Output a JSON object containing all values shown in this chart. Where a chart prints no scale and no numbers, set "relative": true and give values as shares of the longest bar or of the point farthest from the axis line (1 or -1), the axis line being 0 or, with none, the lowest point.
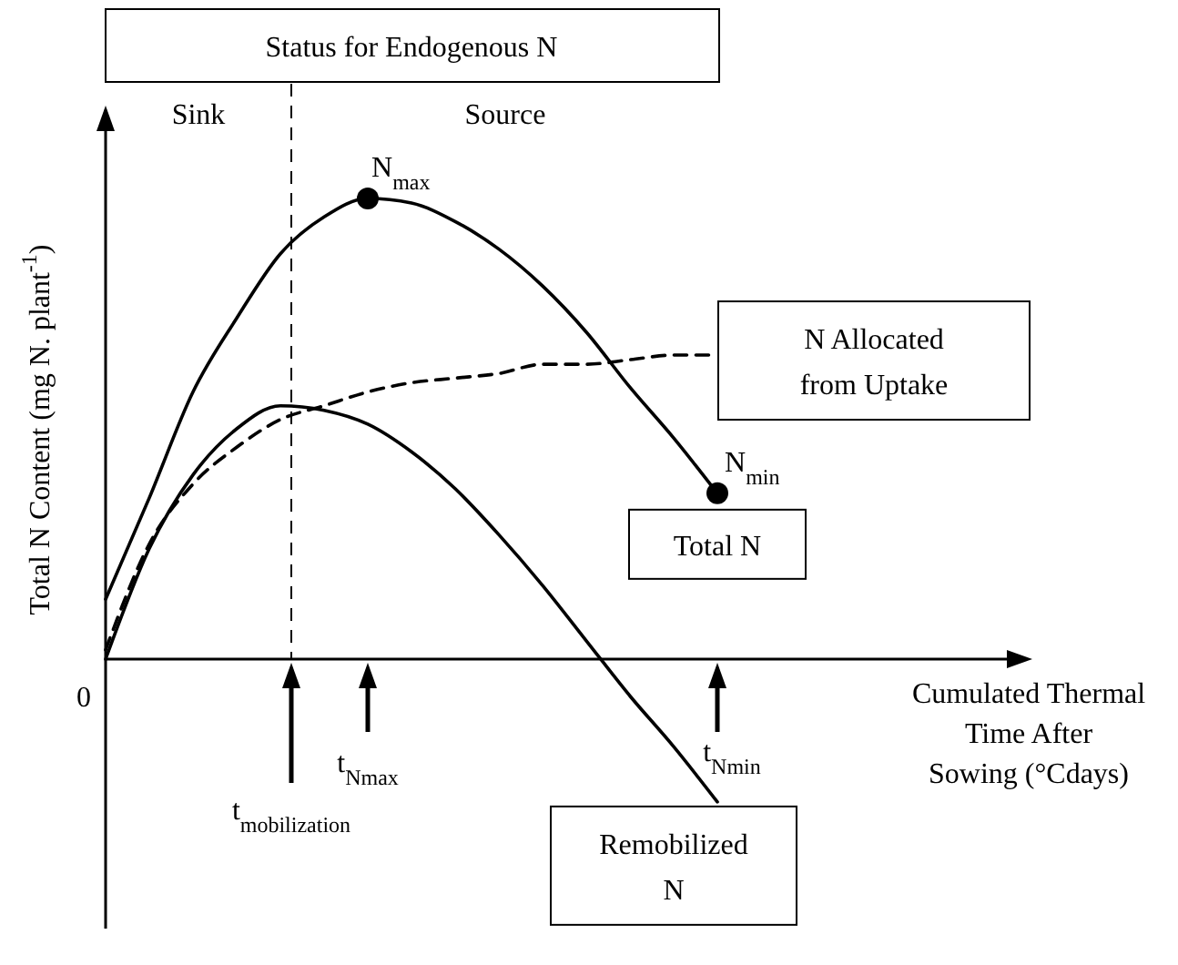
{
  "chart_data": {
    "type": "line",
    "relative": true,
    "title": "Status for Endogenous N",
    "xlabel": "Cumulated Thermal Time After Sowing (°Cdays)",
    "ylabel": "Total N Content (mg N. plant$^{-1}$)",
    "categories": [
      null,
      null,
      null,
      null,
      null,
      null,
      null,
      null,
      null,
      null,
      null,
      null,
      null,
      null,
      null,
      null,
      null,
      null,
      null,
      null,
      null,
      null
    ],
    "series": [
      {
        "name": "Total N",
        "color": "#000000",
        "line_style": "solid",
        "values": [
          0.13,
          0.35,
          0.58,
          0.74,
          0.88,
          0.96,
          1.0,
          0.99,
          0.95,
          0.89,
          0.81,
          0.71,
          0.59,
          0.48,
          0.36,
          null,
          null,
          null,
          null,
          null,
          null,
          null
        ]
      },
      {
        "name": "N Allocated from Uptake",
        "color": "#000000",
        "line_style": "dashed",
        "values": [
          0.02,
          0.25,
          0.38,
          0.46,
          0.52,
          0.55,
          0.58,
          0.6,
          0.61,
          0.62,
          0.64,
          0.64,
          0.65,
          0.66,
          0.66,
          null,
          null,
          null,
          null,
          null,
          null,
          null
        ]
      },
      {
        "name": "Remobilized N",
        "color": "#000000",
        "line_style": "solid",
        "values": [
          0,
          0.24,
          0.4,
          0.5,
          0.55,
          0.54,
          0.51,
          0.45,
          0.37,
          0.27,
          0.16,
          0.04,
          -0.08,
          -0.19,
          -0.31,
          null,
          null,
          null,
          null,
          null,
          null,
          null
        ]
      }
    ],
    "annotations": [
      "Sink",
      "Source",
      "0",
      "N$_{max}$",
      "N$_{min}$",
      "t$_{mobilization}$",
      "t$_{Nmax}$",
      "t$_{Nmin}$"
    ]
  }
}
